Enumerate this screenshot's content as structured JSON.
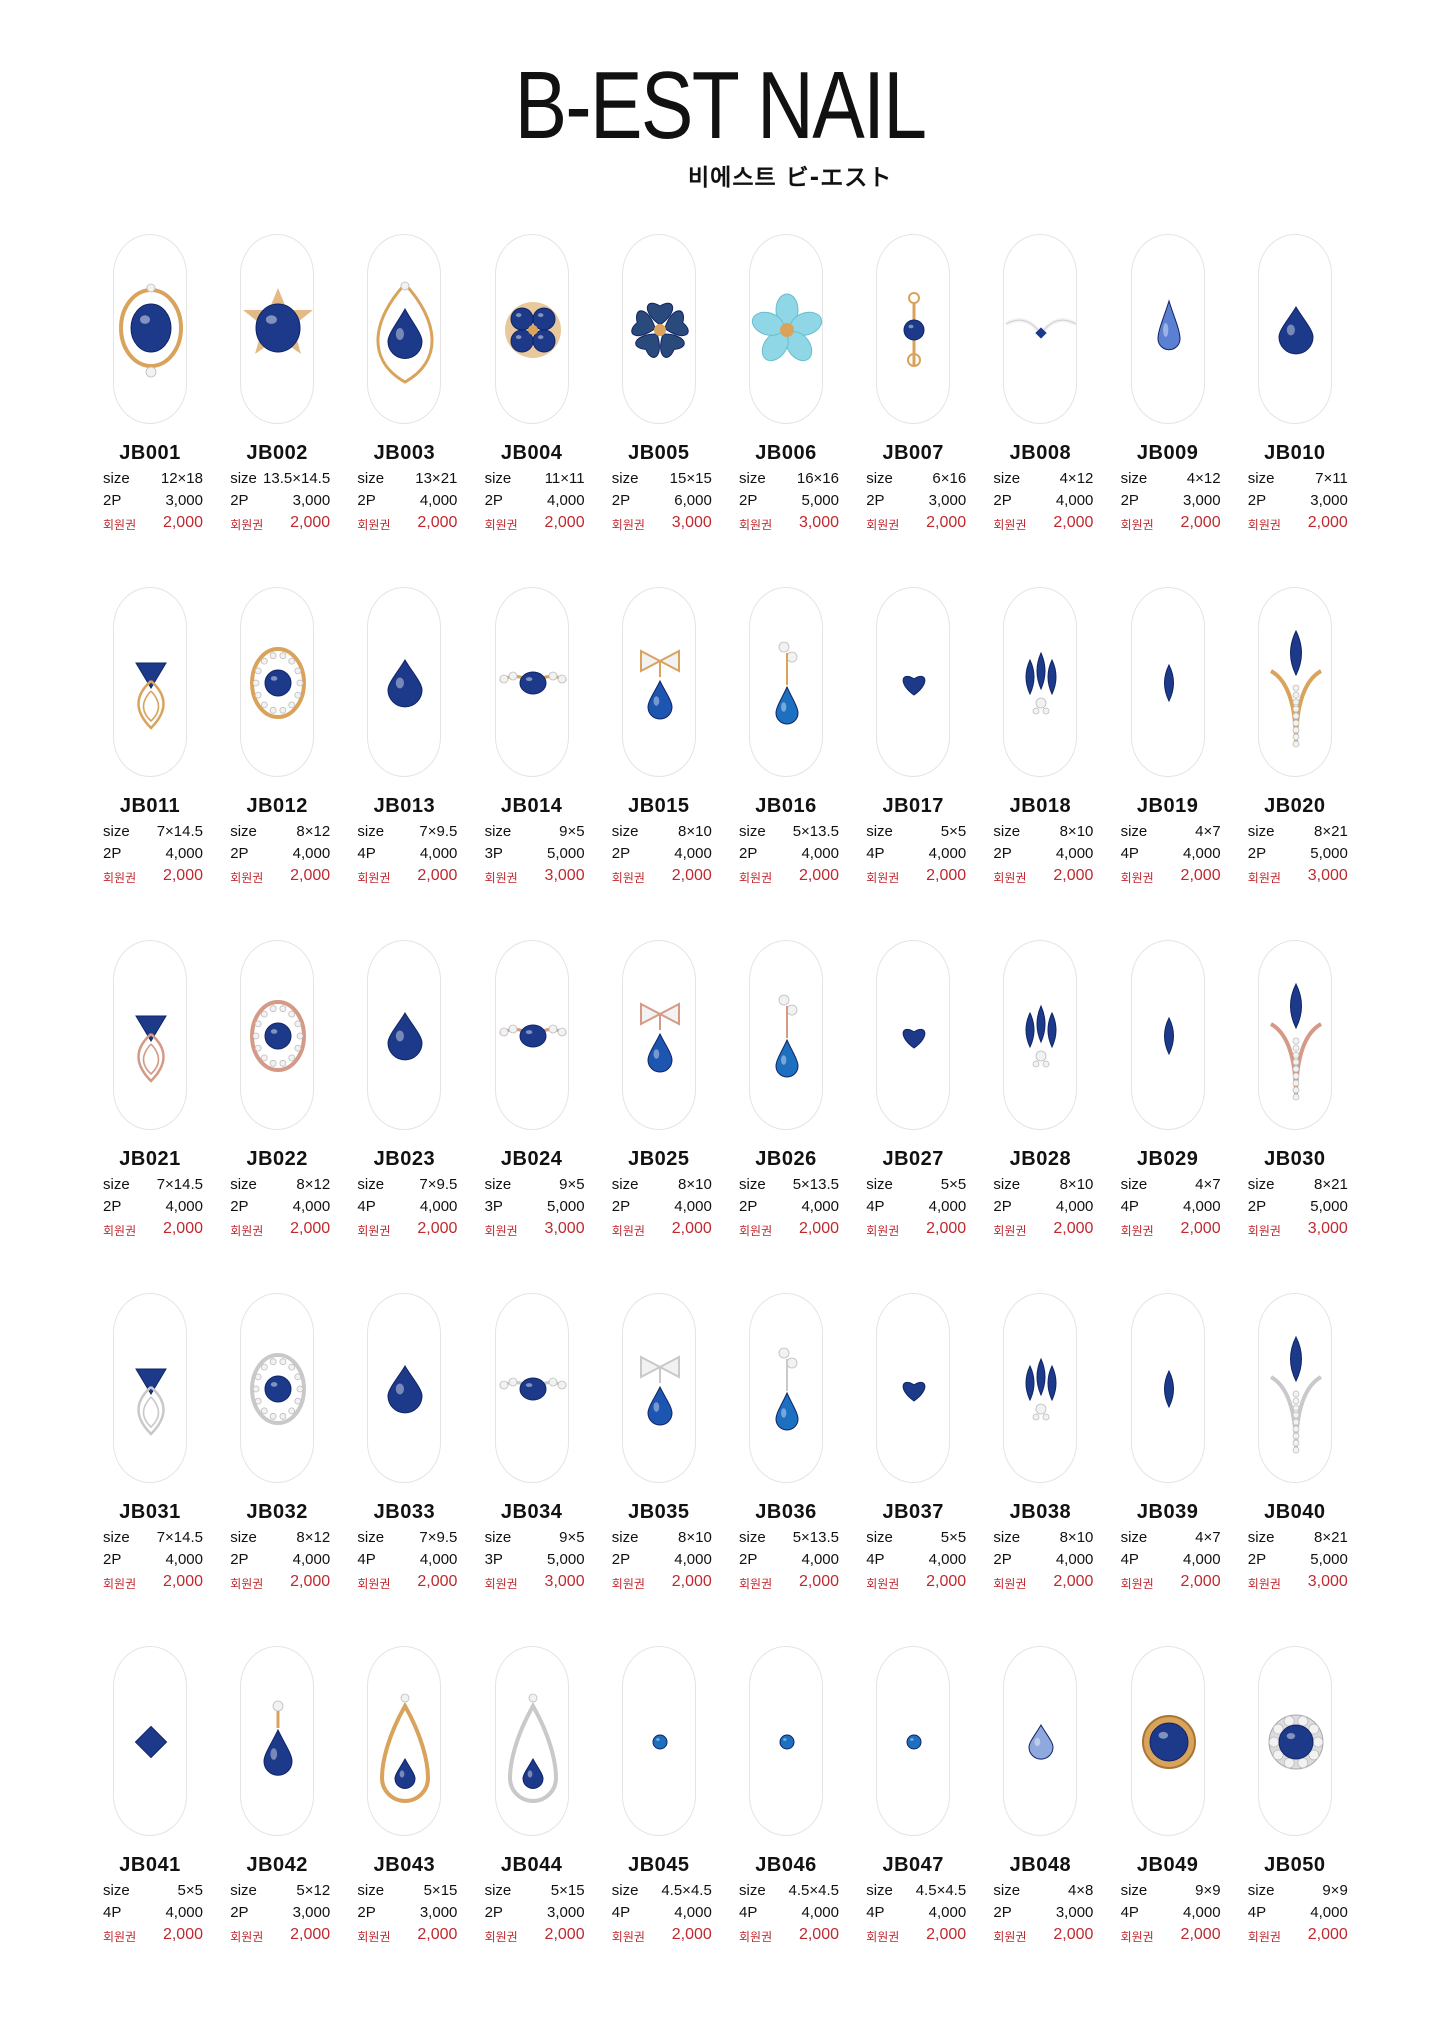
{
  "brand": {
    "name": "B-EST NAIL",
    "subtitle": "비에스트 ビ-エスト"
  },
  "labels": {
    "size": "size",
    "member": "회원권"
  },
  "colors": {
    "sapphire": "#1d3a8a",
    "sapphire_dark": "#0f2466",
    "turquoise": "#8fd6e6",
    "gold": "#d9a35c",
    "rose_gold": "#d49a86",
    "silver": "#c9c9cc",
    "crystal": "#f2f2f2",
    "price_red": "#c0282e",
    "nail_outline": "#e4e4e4"
  },
  "products": [
    {
      "code": "JB001",
      "size": "12×18",
      "qty": "2P",
      "price": "3,000",
      "member_price": "2,000",
      "icon": "oval-sapphire-gold-frame-icon"
    },
    {
      "code": "JB002",
      "size": "13.5×14.5",
      "qty": "2P",
      "price": "3,000",
      "member_price": "2,000",
      "icon": "round-sapphire-star-frame-icon"
    },
    {
      "code": "JB003",
      "size": "13×21",
      "qty": "2P",
      "price": "4,000",
      "member_price": "2,000",
      "icon": "teardrop-sapphire-ornate-icon"
    },
    {
      "code": "JB004",
      "size": "11×11",
      "qty": "2P",
      "price": "4,000",
      "member_price": "2,000",
      "icon": "quatrefoil-sapphire-icon"
    },
    {
      "code": "JB005",
      "size": "15×15",
      "qty": "2P",
      "price": "6,000",
      "member_price": "3,000",
      "icon": "blue-heart-flower-icon"
    },
    {
      "code": "JB006",
      "size": "16×16",
      "qty": "2P",
      "price": "5,000",
      "member_price": "3,000",
      "icon": "turquoise-flower-icon"
    },
    {
      "code": "JB007",
      "size": "6×16",
      "qty": "2P",
      "price": "3,000",
      "member_price": "2,000",
      "icon": "vintage-drop-charm-icon"
    },
    {
      "code": "JB008",
      "size": "4×12",
      "qty": "2P",
      "price": "4,000",
      "member_price": "2,000",
      "icon": "crystal-wing-bar-icon"
    },
    {
      "code": "JB009",
      "size": "4×12",
      "qty": "2P",
      "price": "3,000",
      "member_price": "2,000",
      "icon": "long-teardrop-light-blue-icon"
    },
    {
      "code": "JB010",
      "size": "7×11",
      "qty": "2P",
      "price": "3,000",
      "member_price": "2,000",
      "icon": "teardrop-sapphire-icon"
    },
    {
      "code": "JB011",
      "size": "7×14.5",
      "qty": "2P",
      "price": "4,000",
      "member_price": "2,000",
      "icon": "trillion-sapphire-gold-loop-icon"
    },
    {
      "code": "JB012",
      "size": "8×12",
      "qty": "2P",
      "price": "4,000",
      "member_price": "2,000",
      "icon": "round-sapphire-halo-gold-icon"
    },
    {
      "code": "JB013",
      "size": "7×9.5",
      "qty": "4P",
      "price": "4,000",
      "member_price": "2,000",
      "icon": "pear-sapphire-icon"
    },
    {
      "code": "JB014",
      "size": "9×5",
      "qty": "3P",
      "price": "5,000",
      "member_price": "3,000",
      "icon": "bar-sapphire-crystal-gold-icon"
    },
    {
      "code": "JB015",
      "size": "8×10",
      "qty": "2P",
      "price": "4,000",
      "member_price": "2,000",
      "icon": "bow-drop-gold-icon"
    },
    {
      "code": "JB016",
      "size": "5×13.5",
      "qty": "2P",
      "price": "4,000",
      "member_price": "2,000",
      "icon": "star-drop-gold-icon"
    },
    {
      "code": "JB017",
      "size": "5×5",
      "qty": "4P",
      "price": "4,000",
      "member_price": "2,000",
      "icon": "heart-sapphire-icon"
    },
    {
      "code": "JB018",
      "size": "8×10",
      "qty": "2P",
      "price": "4,000",
      "member_price": "2,000",
      "icon": "leaf-cluster-sapphire-icon"
    },
    {
      "code": "JB019",
      "size": "4×7",
      "qty": "4P",
      "price": "4,000",
      "member_price": "2,000",
      "icon": "marquise-sapphire-icon"
    },
    {
      "code": "JB020",
      "size": "8×21",
      "qty": "2P",
      "price": "5,000",
      "member_price": "3,000",
      "icon": "tulip-marquise-gold-icon"
    },
    {
      "code": "JB021",
      "size": "7×14.5",
      "qty": "2P",
      "price": "4,000",
      "member_price": "2,000",
      "icon": "trillion-sapphire-rose-loop-icon"
    },
    {
      "code": "JB022",
      "size": "8×12",
      "qty": "2P",
      "price": "4,000",
      "member_price": "2,000",
      "icon": "round-sapphire-halo-rose-icon"
    },
    {
      "code": "JB023",
      "size": "7×9.5",
      "qty": "4P",
      "price": "4,000",
      "member_price": "2,000",
      "icon": "pear-sapphire-rose-icon"
    },
    {
      "code": "JB024",
      "size": "9×5",
      "qty": "3P",
      "price": "5,000",
      "member_price": "3,000",
      "icon": "bar-sapphire-crystal-rose-icon"
    },
    {
      "code": "JB025",
      "size": "8×10",
      "qty": "2P",
      "price": "4,000",
      "member_price": "2,000",
      "icon": "bow-drop-rose-icon"
    },
    {
      "code": "JB026",
      "size": "5×13.5",
      "qty": "2P",
      "price": "4,000",
      "member_price": "2,000",
      "icon": "star-drop-rose-icon"
    },
    {
      "code": "JB027",
      "size": "5×5",
      "qty": "4P",
      "price": "4,000",
      "member_price": "2,000",
      "icon": "heart-sapphire-rose-icon"
    },
    {
      "code": "JB028",
      "size": "8×10",
      "qty": "2P",
      "price": "4,000",
      "member_price": "2,000",
      "icon": "leaf-cluster-sapphire-rose-icon"
    },
    {
      "code": "JB029",
      "size": "4×7",
      "qty": "4P",
      "price": "4,000",
      "member_price": "2,000",
      "icon": "marquise-sapphire-rose-icon"
    },
    {
      "code": "JB030",
      "size": "8×21",
      "qty": "2P",
      "price": "5,000",
      "member_price": "3,000",
      "icon": "tulip-marquise-rose-icon"
    },
    {
      "code": "JB031",
      "size": "7×14.5",
      "qty": "2P",
      "price": "4,000",
      "member_price": "2,000",
      "icon": "trillion-sapphire-silver-loop-icon"
    },
    {
      "code": "JB032",
      "size": "8×12",
      "qty": "2P",
      "price": "4,000",
      "member_price": "2,000",
      "icon": "round-sapphire-halo-silver-icon"
    },
    {
      "code": "JB033",
      "size": "7×9.5",
      "qty": "4P",
      "price": "4,000",
      "member_price": "2,000",
      "icon": "pear-sapphire-silver-icon"
    },
    {
      "code": "JB034",
      "size": "9×5",
      "qty": "3P",
      "price": "5,000",
      "member_price": "3,000",
      "icon": "bar-sapphire-crystal-silver-icon"
    },
    {
      "code": "JB035",
      "size": "8×10",
      "qty": "2P",
      "price": "4,000",
      "member_price": "2,000",
      "icon": "bow-drop-silver-icon"
    },
    {
      "code": "JB036",
      "size": "5×13.5",
      "qty": "2P",
      "price": "4,000",
      "member_price": "2,000",
      "icon": "star-drop-silver-icon"
    },
    {
      "code": "JB037",
      "size": "5×5",
      "qty": "4P",
      "price": "4,000",
      "member_price": "2,000",
      "icon": "heart-sapphire-silver-icon"
    },
    {
      "code": "JB038",
      "size": "8×10",
      "qty": "2P",
      "price": "4,000",
      "member_price": "2,000",
      "icon": "leaf-cluster-sapphire-silver-icon"
    },
    {
      "code": "JB039",
      "size": "4×7",
      "qty": "4P",
      "price": "4,000",
      "member_price": "2,000",
      "icon": "marquise-sapphire-silver-icon"
    },
    {
      "code": "JB040",
      "size": "8×21",
      "qty": "2P",
      "price": "5,000",
      "member_price": "3,000",
      "icon": "tulip-marquise-silver-icon"
    },
    {
      "code": "JB041",
      "size": "5×5",
      "qty": "4P",
      "price": "4,000",
      "member_price": "2,000",
      "icon": "square-sapphire-icon"
    },
    {
      "code": "JB042",
      "size": "5×12",
      "qty": "2P",
      "price": "3,000",
      "member_price": "2,000",
      "icon": "pear-drop-gold-pendant-icon"
    },
    {
      "code": "JB043",
      "size": "5×15",
      "qty": "2P",
      "price": "3,000",
      "member_price": "2,000",
      "icon": "teardrop-frame-gold-icon"
    },
    {
      "code": "JB044",
      "size": "5×15",
      "qty": "2P",
      "price": "3,000",
      "member_price": "2,000",
      "icon": "teardrop-frame-silver-icon"
    },
    {
      "code": "JB045",
      "size": "4.5×4.5",
      "qty": "4P",
      "price": "4,000",
      "member_price": "2,000",
      "icon": "small-round-blue-icon"
    },
    {
      "code": "JB046",
      "size": "4.5×4.5",
      "qty": "4P",
      "price": "4,000",
      "member_price": "2,000",
      "icon": "small-round-blue-icon"
    },
    {
      "code": "JB047",
      "size": "4.5×4.5",
      "qty": "4P",
      "price": "4,000",
      "member_price": "2,000",
      "icon": "small-round-blue-icon"
    },
    {
      "code": "JB048",
      "size": "4×8",
      "qty": "2P",
      "price": "3,000",
      "member_price": "2,000",
      "icon": "pear-light-blue-icon"
    },
    {
      "code": "JB049",
      "size": "9×9",
      "qty": "4P",
      "price": "4,000",
      "member_price": "2,000",
      "icon": "round-sapphire-gold-bezel-icon"
    },
    {
      "code": "JB050",
      "size": "9×9",
      "qty": "4P",
      "price": "4,000",
      "member_price": "2,000",
      "icon": "round-sapphire-crystal-halo-icon"
    }
  ]
}
